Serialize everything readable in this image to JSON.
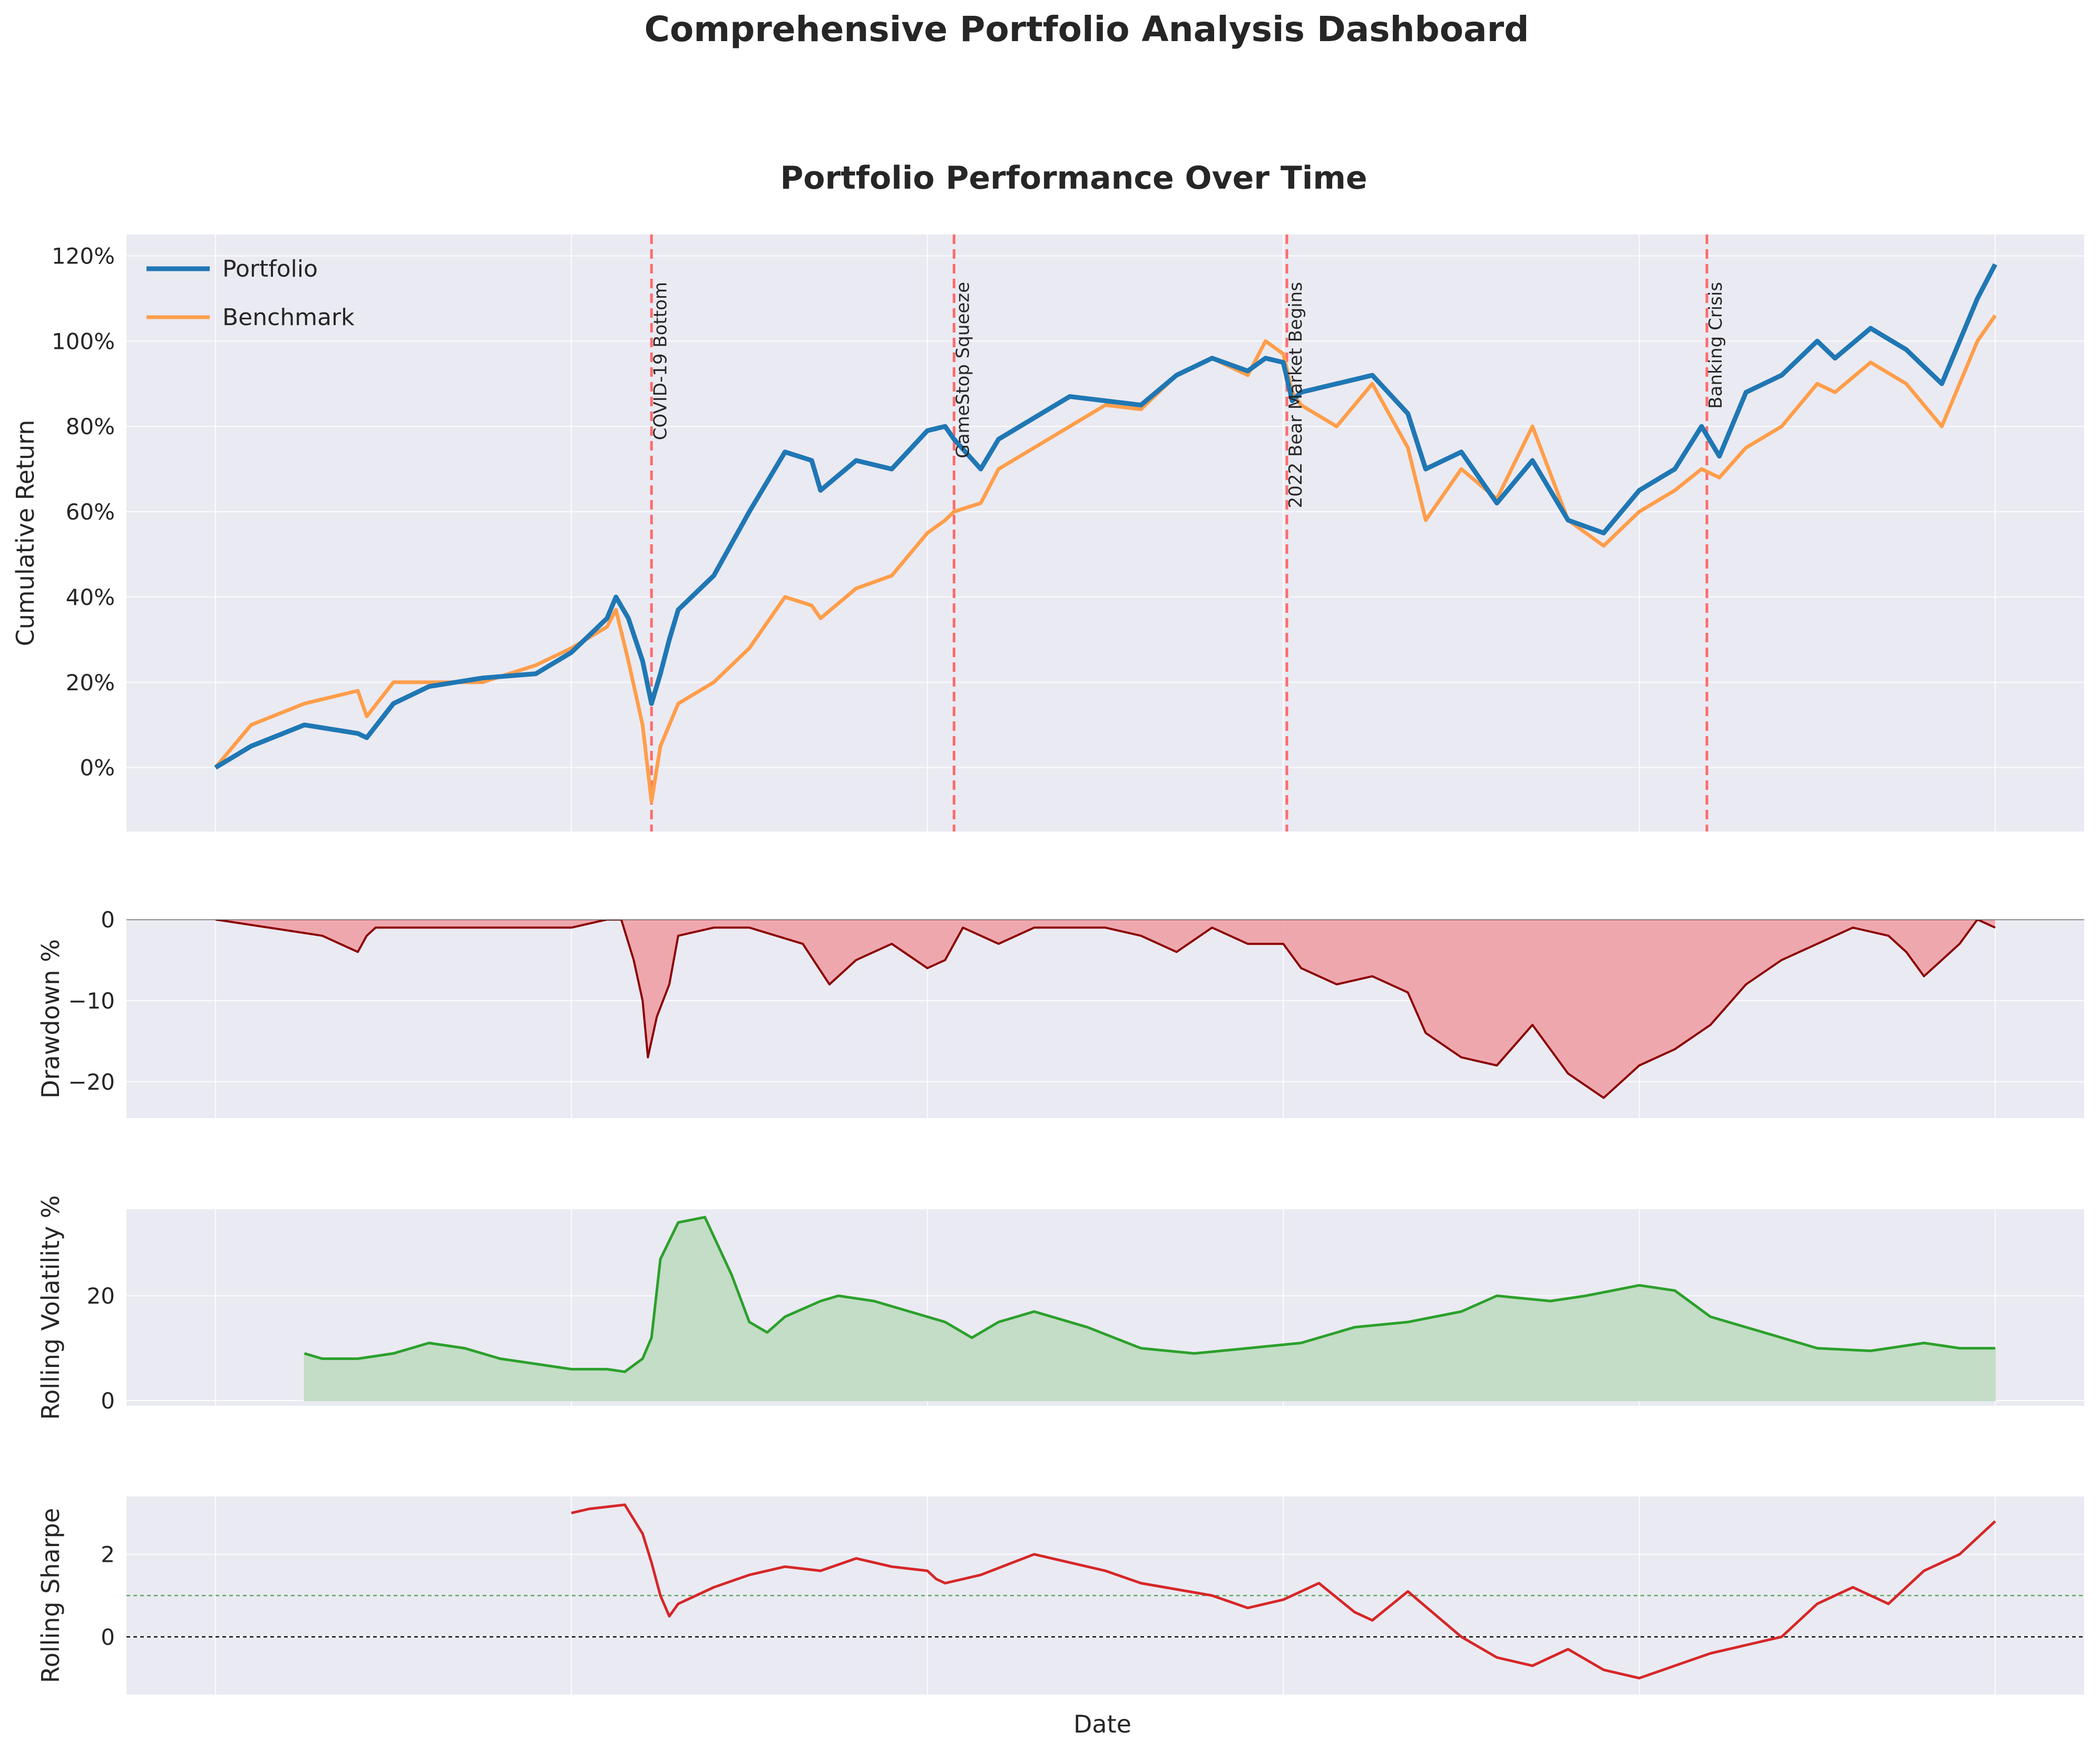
{
  "figure": {
    "title": "Comprehensive Portfolio Analysis Dashboard",
    "xlabel": "Date"
  },
  "colors": {
    "panel_bg": "#eaeaf2",
    "grid": "#ffffff",
    "portfolio": "#1f77b4",
    "benchmark": "#ff9e4a",
    "event_line": "#ff6b6b",
    "drawdown_fill": "#f0a0a6",
    "drawdown_line": "#8b0000",
    "volatility": "#2ca02c",
    "volatility_fill": "#c3ddc6",
    "sharpe": "#d62728",
    "sharpe_ref": "#5fa85f"
  },
  "chart_data": [
    {
      "id": "performance",
      "type": "line",
      "title": "Portfolio Performance Over Time",
      "ylabel": "Cumulative Return",
      "xlim": [
        -0.05,
        1.05
      ],
      "ylim": [
        -15,
        125
      ],
      "yticks": [
        0,
        20,
        40,
        60,
        80,
        100,
        120
      ],
      "ytick_labels": [
        "0%",
        "20%",
        "40%",
        "60%",
        "80%",
        "100%",
        "120%"
      ],
      "legend": {
        "position": "top-left",
        "entries": [
          "Portfolio",
          "Benchmark"
        ]
      },
      "events": [
        {
          "x": 0.245,
          "label": "COVID-19 Bottom"
        },
        {
          "x": 0.415,
          "label": "GameStop Squeeze"
        },
        {
          "x": 0.602,
          "label": "2022 Bear Market Begins"
        },
        {
          "x": 0.838,
          "label": "Banking Crisis"
        }
      ],
      "series": [
        {
          "name": "Portfolio",
          "x": [
            0,
            0.02,
            0.05,
            0.08,
            0.085,
            0.1,
            0.12,
            0.15,
            0.18,
            0.2,
            0.22,
            0.225,
            0.232,
            0.24,
            0.245,
            0.25,
            0.255,
            0.26,
            0.28,
            0.3,
            0.32,
            0.335,
            0.34,
            0.36,
            0.38,
            0.4,
            0.41,
            0.415,
            0.43,
            0.44,
            0.46,
            0.48,
            0.5,
            0.52,
            0.54,
            0.56,
            0.58,
            0.59,
            0.6,
            0.605,
            0.61,
            0.63,
            0.65,
            0.67,
            0.68,
            0.7,
            0.72,
            0.74,
            0.76,
            0.78,
            0.8,
            0.82,
            0.835,
            0.845,
            0.86,
            0.88,
            0.9,
            0.91,
            0.93,
            0.95,
            0.97,
            0.99,
            1.0
          ],
          "values": [
            0,
            5,
            10,
            8,
            7,
            15,
            19,
            21,
            22,
            27,
            35,
            40,
            35,
            25,
            15,
            22,
            30,
            37,
            45,
            60,
            74,
            72,
            65,
            72,
            70,
            79,
            80,
            77,
            70,
            77,
            82,
            87,
            86,
            85,
            92,
            96,
            93,
            96,
            95,
            86,
            88,
            90,
            92,
            83,
            70,
            74,
            62,
            72,
            58,
            55,
            65,
            70,
            80,
            73,
            88,
            92,
            100,
            96,
            103,
            98,
            90,
            110,
            118
          ]
        },
        {
          "name": "Benchmark",
          "x": [
            0,
            0.02,
            0.05,
            0.08,
            0.085,
            0.1,
            0.12,
            0.15,
            0.18,
            0.2,
            0.22,
            0.225,
            0.232,
            0.24,
            0.245,
            0.25,
            0.255,
            0.26,
            0.28,
            0.3,
            0.32,
            0.335,
            0.34,
            0.36,
            0.38,
            0.4,
            0.41,
            0.415,
            0.43,
            0.44,
            0.46,
            0.48,
            0.5,
            0.52,
            0.54,
            0.56,
            0.58,
            0.59,
            0.6,
            0.605,
            0.61,
            0.63,
            0.65,
            0.67,
            0.68,
            0.7,
            0.72,
            0.74,
            0.76,
            0.78,
            0.8,
            0.82,
            0.835,
            0.845,
            0.86,
            0.88,
            0.9,
            0.91,
            0.93,
            0.95,
            0.97,
            0.99,
            1.0
          ],
          "values": [
            0,
            10,
            15,
            18,
            12,
            20,
            20,
            20,
            24,
            28,
            33,
            37,
            25,
            10,
            -8,
            5,
            10,
            15,
            20,
            28,
            40,
            38,
            35,
            42,
            45,
            55,
            58,
            60,
            62,
            70,
            75,
            80,
            85,
            84,
            92,
            96,
            92,
            100,
            97,
            88,
            85,
            80,
            90,
            75,
            58,
            70,
            63,
            80,
            58,
            52,
            60,
            65,
            70,
            68,
            75,
            80,
            90,
            88,
            95,
            90,
            80,
            100,
            106
          ]
        }
      ]
    },
    {
      "id": "drawdown",
      "type": "area",
      "ylabel": "Drawdown %",
      "xlim": [
        -0.05,
        1.05
      ],
      "ylim": [
        -24.5,
        0
      ],
      "yticks": [
        0,
        -10,
        -20
      ],
      "ytick_labels": [
        "0",
        "−10",
        "−20"
      ],
      "series": [
        {
          "name": "Portfolio",
          "x": [
            0,
            0.03,
            0.06,
            0.08,
            0.085,
            0.09,
            0.12,
            0.15,
            0.18,
            0.2,
            0.22,
            0.228,
            0.235,
            0.24,
            0.243,
            0.248,
            0.255,
            0.26,
            0.28,
            0.3,
            0.33,
            0.345,
            0.36,
            0.38,
            0.4,
            0.41,
            0.42,
            0.43,
            0.44,
            0.46,
            0.5,
            0.52,
            0.54,
            0.56,
            0.58,
            0.6,
            0.61,
            0.63,
            0.65,
            0.67,
            0.68,
            0.7,
            0.72,
            0.74,
            0.76,
            0.78,
            0.79,
            0.8,
            0.82,
            0.84,
            0.86,
            0.88,
            0.9,
            0.92,
            0.94,
            0.95,
            0.96,
            0.98,
            0.99,
            1.0
          ],
          "values": [
            0,
            -1,
            -2,
            -4,
            -2,
            -1,
            -1,
            -1,
            -1,
            -1,
            0,
            0,
            -5,
            -10,
            -17,
            -12,
            -8,
            -2,
            -1,
            -1,
            -3,
            -8,
            -5,
            -3,
            -6,
            -5,
            -1,
            -2,
            -3,
            -1,
            -1,
            -2,
            -4,
            -1,
            -3,
            -3,
            -6,
            -8,
            -7,
            -9,
            -14,
            -17,
            -18,
            -13,
            -19,
            -22,
            -20,
            -18,
            -16,
            -13,
            -8,
            -5,
            -3,
            -1,
            -2,
            -4,
            -7,
            -3,
            0,
            -1
          ]
        }
      ]
    },
    {
      "id": "volatility",
      "type": "area",
      "ylabel": "Rolling Volatility %",
      "xlim": [
        -0.05,
        1.05
      ],
      "ylim": [
        -1,
        36.5
      ],
      "yticks": [
        0,
        20
      ],
      "ytick_labels": [
        "0",
        "20"
      ],
      "series": [
        {
          "name": "Rolling Volatility",
          "x": [
            0.05,
            0.06,
            0.08,
            0.1,
            0.12,
            0.14,
            0.16,
            0.18,
            0.2,
            0.22,
            0.23,
            0.24,
            0.245,
            0.25,
            0.26,
            0.275,
            0.29,
            0.3,
            0.31,
            0.32,
            0.34,
            0.35,
            0.37,
            0.39,
            0.41,
            0.425,
            0.44,
            0.46,
            0.49,
            0.52,
            0.55,
            0.58,
            0.61,
            0.64,
            0.67,
            0.7,
            0.72,
            0.75,
            0.77,
            0.8,
            0.82,
            0.84,
            0.87,
            0.9,
            0.93,
            0.96,
            0.98,
            1.0
          ],
          "values": [
            9,
            8,
            8,
            9,
            11,
            10,
            8,
            7,
            6,
            6,
            5.5,
            8,
            12,
            27,
            34,
            35,
            24,
            15,
            13,
            16,
            19,
            20,
            19,
            17,
            15,
            12,
            15,
            17,
            14,
            10,
            9,
            10,
            11,
            14,
            15,
            17,
            20,
            19,
            20,
            22,
            21,
            16,
            13,
            10,
            9.5,
            11,
            10,
            10
          ]
        }
      ]
    },
    {
      "id": "sharpe",
      "type": "line",
      "ylabel": "Rolling Sharpe",
      "xlim": [
        -0.05,
        1.05
      ],
      "ylim": [
        -1.4,
        3.4
      ],
      "yticks": [
        0,
        2
      ],
      "ytick_labels": [
        "0",
        "2"
      ],
      "ref_lines": [
        0,
        1
      ],
      "series": [
        {
          "name": "Rolling Sharpe",
          "x": [
            0.2,
            0.21,
            0.23,
            0.24,
            0.245,
            0.25,
            0.255,
            0.26,
            0.28,
            0.3,
            0.32,
            0.34,
            0.36,
            0.38,
            0.4,
            0.405,
            0.41,
            0.43,
            0.46,
            0.5,
            0.52,
            0.56,
            0.58,
            0.6,
            0.62,
            0.64,
            0.65,
            0.67,
            0.7,
            0.72,
            0.74,
            0.76,
            0.78,
            0.8,
            0.82,
            0.84,
            0.86,
            0.88,
            0.9,
            0.92,
            0.94,
            0.96,
            0.98,
            1.0
          ],
          "values": [
            3,
            3.1,
            3.2,
            2.5,
            1.8,
            1.0,
            0.5,
            0.8,
            1.2,
            1.5,
            1.7,
            1.6,
            1.9,
            1.7,
            1.6,
            1.4,
            1.3,
            1.5,
            2.0,
            1.6,
            1.3,
            1.0,
            0.7,
            0.9,
            1.3,
            0.6,
            0.4,
            1.1,
            0.0,
            -0.5,
            -0.7,
            -0.3,
            -0.8,
            -1.0,
            -0.7,
            -0.4,
            -0.2,
            0.0,
            0.8,
            1.2,
            0.8,
            1.6,
            2.0,
            2.8
          ]
        }
      ]
    }
  ]
}
